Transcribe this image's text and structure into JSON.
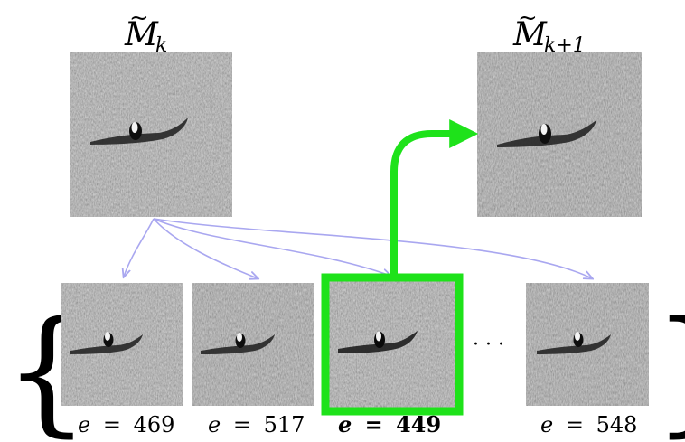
{
  "colors": {
    "selection": "#1ee21a",
    "candidate_arrow": "#a9a7f0",
    "text": "#000000"
  },
  "top": {
    "current": {
      "symbol": "M",
      "subscript": "k"
    },
    "next": {
      "symbol": "M",
      "subscript": "k+1"
    }
  },
  "candidates": [
    {
      "var": "e",
      "eq": "=",
      "value": "469",
      "selected": false
    },
    {
      "var": "e",
      "eq": "=",
      "value": "517",
      "selected": false
    },
    {
      "var": "e",
      "eq": "=",
      "value": "449",
      "selected": true
    },
    {
      "var": "e",
      "eq": "=",
      "value": "548",
      "selected": false
    }
  ],
  "ellipsis": "· · ·",
  "brackets": {
    "open": "{",
    "close": "}"
  }
}
